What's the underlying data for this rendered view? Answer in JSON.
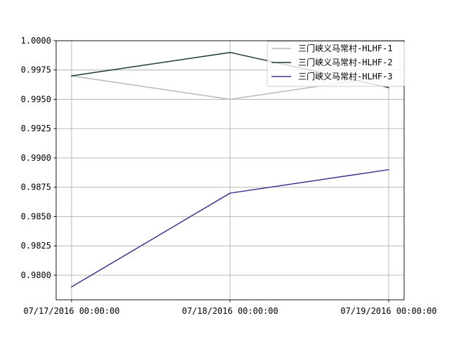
{
  "chart_data": {
    "type": "line",
    "title": "",
    "xlabel": "",
    "ylabel": "",
    "x": [
      "07/17/2016 00:00:00",
      "07/18/2016 00:00:00",
      "07/19/2016 00:00:00"
    ],
    "y_ticks": [
      "0.9800",
      "0.9825",
      "0.9850",
      "0.9875",
      "0.9900",
      "0.9925",
      "0.9950",
      "0.9975",
      "1.0000"
    ],
    "y_tick_values": [
      0.98,
      0.9825,
      0.985,
      0.9875,
      0.99,
      0.9925,
      0.995,
      0.9975,
      1.0
    ],
    "ylim": [
      0.9779,
      1.0
    ],
    "grid": true,
    "legend_position": "top-right",
    "series": [
      {
        "name": "三门峡义马常村-HLHF-1",
        "color": "#bab6c7",
        "values": [
          0.997,
          0.995,
          0.997
        ]
      },
      {
        "name": "三门峡义马常村-HLHF-2",
        "color": "#1c3a2e",
        "values": [
          0.997,
          0.999,
          0.996
        ]
      },
      {
        "name": "三门峡义马常村-HLHF-3",
        "color": "#3f3590",
        "values": [
          0.979,
          0.987,
          0.989
        ]
      }
    ]
  }
}
